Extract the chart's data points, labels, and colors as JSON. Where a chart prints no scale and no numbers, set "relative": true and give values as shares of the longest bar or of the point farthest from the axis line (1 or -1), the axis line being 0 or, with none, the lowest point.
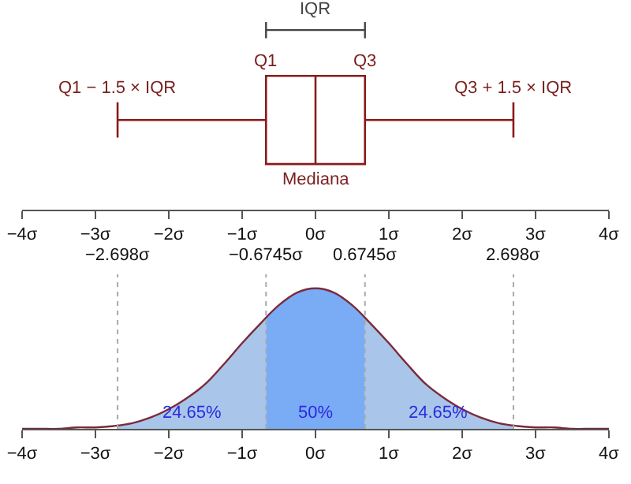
{
  "chart_data": [
    {
      "type": "box",
      "orientation": "horizontal",
      "series": [
        {
          "color": "#8b1a1a",
          "boxes": [
            {
              "low": -2.698,
              "q1": -0.6745,
              "median": 0,
              "q3": 0.6745,
              "high": 2.698
            }
          ]
        }
      ],
      "xlim": [
        -4,
        4
      ],
      "xticks": [
        {
          "value": -4,
          "label": "−4σ"
        },
        {
          "value": -3,
          "label": "−3σ"
        },
        {
          "value": -2,
          "label": "−2σ"
        },
        {
          "value": -1,
          "label": "−1σ"
        },
        {
          "value": 0,
          "label": "0σ"
        },
        {
          "value": 1,
          "label": "1σ"
        },
        {
          "value": 2,
          "label": "2σ"
        },
        {
          "value": 3,
          "label": "3σ"
        },
        {
          "value": 4,
          "label": "4σ"
        }
      ],
      "tick_labels": "x",
      "annotations": [
        "IQR",
        "Q1",
        "Q3",
        "Q1 − 1.5 × IQR",
        "Q3 + 1.5 × IQR",
        "Mediana"
      ]
    },
    {
      "type": "area",
      "relative": true,
      "series": [
        {
          "color": "#a9c6ea",
          "x": [
            -2.698,
            -2.5,
            -2.25,
            -2,
            -1.75,
            -1.5,
            -1.25,
            -1,
            -0.75,
            -0.6745
          ],
          "values": [
            0.03,
            0.04,
            0.08,
            0.14,
            0.22,
            0.32,
            0.46,
            0.61,
            0.75,
            0.8
          ]
        },
        {
          "color": "#7aabf5",
          "x": [
            -0.6745,
            -0.5,
            -0.25,
            0,
            0.25,
            0.5,
            0.6745
          ],
          "values": [
            0.8,
            0.88,
            0.97,
            1,
            0.97,
            0.88,
            0.8
          ]
        },
        {
          "color": "#a9c6ea",
          "x": [
            0.6745,
            0.75,
            1,
            1.25,
            1.5,
            1.75,
            2,
            2.25,
            2.5,
            2.698
          ],
          "values": [
            0.8,
            0.75,
            0.61,
            0.46,
            0.32,
            0.22,
            0.14,
            0.08,
            0.04,
            0.03
          ]
        },
        {
          "type": "line",
          "color": "#7b2a3a",
          "x": [
            -4,
            -3.75,
            -3.5,
            -3.25,
            -3,
            -2.75,
            -2.5,
            -2.25,
            -2,
            -1.75,
            -1.5,
            -1.25,
            -1,
            -0.75,
            -0.5,
            -0.25,
            0,
            0.25,
            0.5,
            0.75,
            1,
            1.25,
            1.5,
            1.75,
            2,
            2.25,
            2.5,
            2.75,
            3,
            3.25,
            3.5,
            3.75,
            4
          ],
          "values": [
            0,
            0,
            0,
            0.01,
            0.01,
            0.02,
            0.04,
            0.08,
            0.14,
            0.22,
            0.32,
            0.46,
            0.61,
            0.75,
            0.88,
            0.97,
            1,
            0.97,
            0.88,
            0.75,
            0.61,
            0.46,
            0.32,
            0.22,
            0.14,
            0.08,
            0.04,
            0.02,
            0.01,
            0.01,
            0,
            0,
            0
          ]
        }
      ],
      "xlim": [
        -4,
        4
      ],
      "xticks": [
        {
          "value": -4,
          "label": "−4σ"
        },
        {
          "value": -3,
          "label": "−3σ"
        },
        {
          "value": -2,
          "label": "−2σ"
        },
        {
          "value": -1,
          "label": "−1σ"
        },
        {
          "value": 0,
          "label": "0σ"
        },
        {
          "value": 1,
          "label": "1σ"
        },
        {
          "value": 2,
          "label": "2σ"
        },
        {
          "value": 3,
          "label": "3σ"
        },
        {
          "value": 4,
          "label": "4σ"
        }
      ],
      "tick_labels": "x",
      "ref_lines": [
        {
          "axis": "x",
          "value": -2.698,
          "label": "−2.698σ",
          "color": "#aaaaaa",
          "line_style": "dotted"
        },
        {
          "axis": "x",
          "value": -0.6745,
          "label": "−0.6745σ",
          "color": "#aaaaaa",
          "line_style": "dotted"
        },
        {
          "axis": "x",
          "value": 0.6745,
          "label": "0.6745σ",
          "color": "#aaaaaa",
          "line_style": "dotted"
        },
        {
          "axis": "x",
          "value": 2.698,
          "label": "2.698σ",
          "color": "#aaaaaa",
          "line_style": "dotted"
        }
      ],
      "annotations": [
        "24.65%",
        "50%",
        "24.65%"
      ]
    }
  ]
}
